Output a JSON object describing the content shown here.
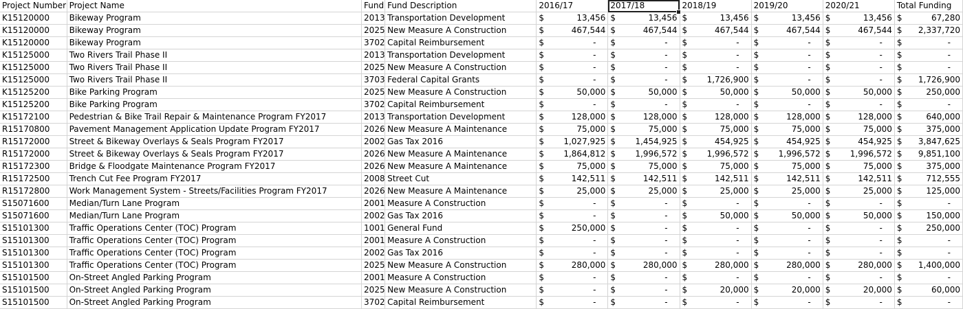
{
  "headers": [
    "Project Number",
    "Project Name",
    "Fund",
    "Fund Description",
    "2016/17",
    "2017/18",
    "2018/19",
    "2019/20",
    "2020/21",
    "Total Funding"
  ],
  "currency": "$",
  "rows": [
    [
      "K15120000",
      "Bikeway Program",
      "2013",
      "Transportation Development",
      "13,456",
      "13,456",
      "13,456",
      "13,456",
      "13,456",
      "67,280"
    ],
    [
      "K15120000",
      "Bikeway Program",
      "2025",
      "New Measure A Construction",
      "467,544",
      "467,544",
      "467,544",
      "467,544",
      "467,544",
      "2,337,720"
    ],
    [
      "K15120000",
      "Bikeway Program",
      "3702",
      "Capital Reimbursement",
      "-",
      "-",
      "-",
      "-",
      "-",
      "-"
    ],
    [
      "K15125000",
      "Two Rivers Trail Phase II",
      "2013",
      "Transportation Development",
      "-",
      "-",
      "-",
      "-",
      "-",
      "-"
    ],
    [
      "K15125000",
      "Two Rivers Trail Phase II",
      "2025",
      "New Measure A Construction",
      "-",
      "-",
      "-",
      "-",
      "-",
      "-"
    ],
    [
      "K15125000",
      "Two Rivers Trail Phase II",
      "3703",
      "Federal Capital Grants",
      "-",
      "-",
      "1,726,900",
      "-",
      "-",
      "1,726,900"
    ],
    [
      "K15125200",
      "Bike Parking Program",
      "2025",
      "New Measure A Construction",
      "50,000",
      "50,000",
      "50,000",
      "50,000",
      "50,000",
      "250,000"
    ],
    [
      "K15125200",
      "Bike Parking Program",
      "3702",
      "Capital Reimbursement",
      "-",
      "-",
      "-",
      "-",
      "-",
      "-"
    ],
    [
      "K15172100",
      "Pedestrian & Bike Trail Repair & Maintenance Program FY2017",
      "2013",
      "Transportation Development",
      "128,000",
      "128,000",
      "128,000",
      "128,000",
      "128,000",
      "640,000"
    ],
    [
      "R15170800",
      "Pavement Management Application Update Program FY2017",
      "2026",
      "New Measure A Maintenance",
      "75,000",
      "75,000",
      "75,000",
      "75,000",
      "75,000",
      "375,000"
    ],
    [
      "R15172000",
      "Street & Bikeway Overlays & Seals Program FY2017",
      "2002",
      "Gas Tax 2016",
      "1,027,925",
      "1,454,925",
      "454,925",
      "454,925",
      "454,925",
      "3,847,625"
    ],
    [
      "R15172000",
      "Street & Bikeway Overlays & Seals Program FY2017",
      "2026",
      "New Measure A Maintenance",
      "1,864,812",
      "1,996,572",
      "1,996,572",
      "1,996,572",
      "1,996,572",
      "9,851,100"
    ],
    [
      "R15172300",
      "Bridge & Floodgate Maintenance Program FY2017",
      "2026",
      "New Measure A Maintenance",
      "75,000",
      "75,000",
      "75,000",
      "75,000",
      "75,000",
      "375,000"
    ],
    [
      "R15172500",
      "Trench Cut Fee Program FY2017",
      "2008",
      "Street Cut",
      "142,511",
      "142,511",
      "142,511",
      "142,511",
      "142,511",
      "712,555"
    ],
    [
      "R15172800",
      "Work Management System - Streets/Facilities Program FY2017",
      "2026",
      "New Measure A Maintenance",
      "25,000",
      "25,000",
      "25,000",
      "25,000",
      "25,000",
      "125,000"
    ],
    [
      "S15071600",
      "Median/Turn Lane Program",
      "2001",
      "Measure A Construction",
      "-",
      "-",
      "-",
      "-",
      "-",
      "-"
    ],
    [
      "S15071600",
      "Median/Turn Lane Program",
      "2002",
      "Gas Tax 2016",
      "-",
      "-",
      "50,000",
      "50,000",
      "50,000",
      "150,000"
    ],
    [
      "S15101300",
      "Traffic Operations Center (TOC) Program",
      "1001",
      "General Fund",
      "250,000",
      "-",
      "-",
      "-",
      "-",
      "250,000"
    ],
    [
      "S15101300",
      "Traffic Operations Center (TOC) Program",
      "2001",
      "Measure A Construction",
      "-",
      "-",
      "-",
      "-",
      "-",
      "-"
    ],
    [
      "S15101300",
      "Traffic Operations Center (TOC) Program",
      "2002",
      "Gas Tax 2016",
      "-",
      "-",
      "-",
      "-",
      "-",
      "-"
    ],
    [
      "S15101300",
      "Traffic Operations Center (TOC) Program",
      "2025",
      "New Measure A Construction",
      "280,000",
      "280,000",
      "280,000",
      "280,000",
      "280,000",
      "1,400,000"
    ],
    [
      "S15101500",
      "On-Street Angled Parking Program",
      "2001",
      "Measure A Construction",
      "-",
      "-",
      "-",
      "-",
      "-",
      "-"
    ],
    [
      "S15101500",
      "On-Street Angled Parking Program",
      "2025",
      "New Measure A Construction",
      "-",
      "-",
      "20,000",
      "20,000",
      "20,000",
      "60,000"
    ],
    [
      "S15101500",
      "On-Street Angled Parking Program",
      "3702",
      "Capital Reimbursement",
      "-",
      "-",
      "-",
      "-",
      "-",
      "-"
    ]
  ],
  "selected_cell": "2017/18 header"
}
